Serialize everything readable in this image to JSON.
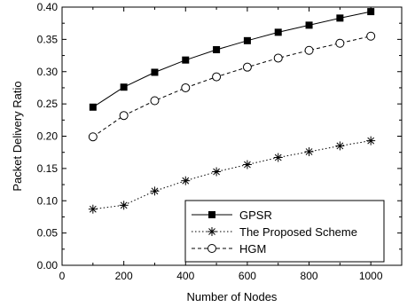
{
  "chart_data": {
    "type": "line",
    "title": "",
    "xlabel": "Number of Nodes",
    "ylabel": "Packet Delivery Ratio",
    "xlim": [
      0,
      1100
    ],
    "ylim": [
      0,
      0.4
    ],
    "x_ticks": [
      0,
      200,
      400,
      600,
      800,
      1000
    ],
    "x_tick_labels": [
      "0",
      "200",
      "400",
      "600",
      "800",
      "1000"
    ],
    "y_ticks": [
      0,
      0.05,
      0.1,
      0.15,
      0.2,
      0.25,
      0.3,
      0.35,
      0.4
    ],
    "y_tick_labels": [
      "0.00",
      "0.05",
      "0.10",
      "0.15",
      "0.20",
      "0.25",
      "0.30",
      "0.35",
      "0.40"
    ],
    "grid": false,
    "legend_position": "bottom-right",
    "x": [
      100,
      200,
      300,
      400,
      500,
      600,
      700,
      800,
      900,
      1000
    ],
    "series": [
      {
        "name": "GPSR",
        "marker": "filled-square",
        "line_style": "solid",
        "color": "#000000",
        "values": [
          0.245,
          0.276,
          0.299,
          0.318,
          0.334,
          0.348,
          0.361,
          0.372,
          0.383,
          0.393
        ]
      },
      {
        "name": "The Proposed Scheme",
        "marker": "asterisk",
        "line_style": "dotted",
        "color": "#000000",
        "values": [
          0.087,
          0.093,
          0.115,
          0.131,
          0.145,
          0.156,
          0.167,
          0.176,
          0.185,
          0.193
        ]
      },
      {
        "name": "HGM",
        "marker": "open-circle",
        "line_style": "dashed",
        "color": "#000000",
        "values": [
          0.199,
          0.232,
          0.255,
          0.275,
          0.292,
          0.307,
          0.321,
          0.333,
          0.344,
          0.355
        ]
      }
    ]
  }
}
